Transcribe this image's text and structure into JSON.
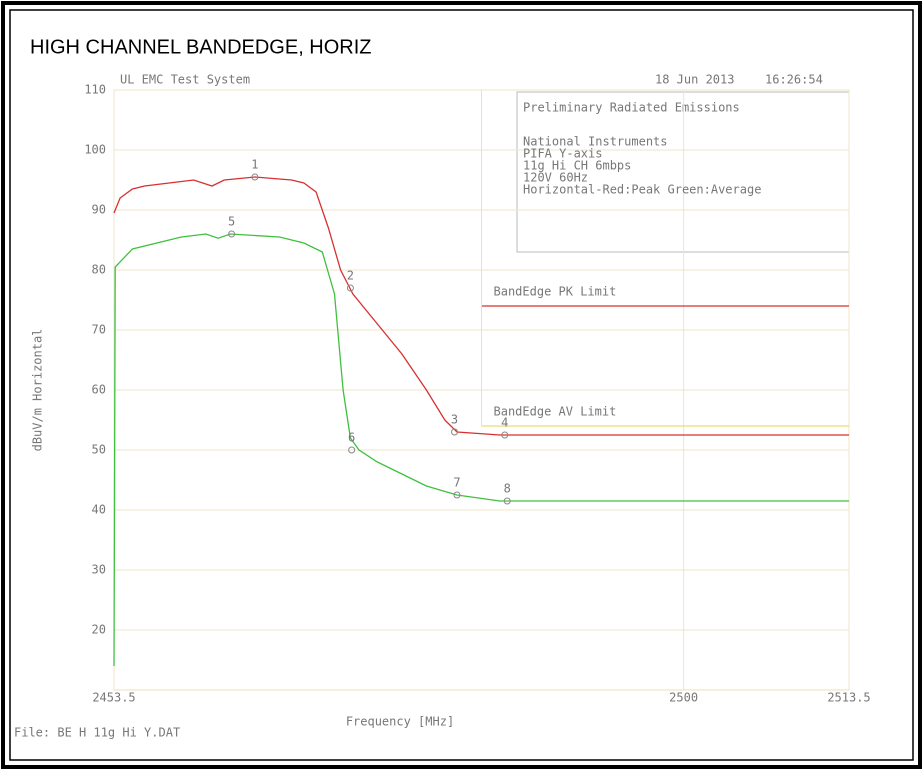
{
  "chart_data": {
    "type": "line",
    "title": "HIGH CHANNEL BANDEDGE, HORIZ",
    "system": "UL EMC Test System",
    "date": "18 Jun 2013",
    "time": "16:26:54",
    "box_title": "Preliminary Radiated Emissions",
    "box_lines": [
      "National Instruments",
      "PIFA Y-axis",
      "11g Hi CH 6mbps",
      "120V 60Hz",
      "Horizontal-Red:Peak Green:Average"
    ],
    "xlabel": "Frequency [MHz]",
    "ylabel": "dBuV/m Horizontal",
    "file": "File: BE H 11g Hi Y.DAT",
    "xlim": [
      2453.5,
      2513.5
    ],
    "xticks": [
      2453.5,
      2500,
      2513.5
    ],
    "ylim": [
      10,
      110
    ],
    "yticks": [
      20,
      30,
      40,
      50,
      60,
      70,
      80,
      90,
      100,
      110
    ],
    "grid": true,
    "series": [
      {
        "name": "Peak",
        "color": "#d83030",
        "x": [
          2453.5,
          2454,
          2455,
          2456,
          2458,
          2460,
          2461.5,
          2462.5,
          2465,
          2468,
          2469,
          2470,
          2471,
          2472,
          2473,
          2475,
          2477,
          2479,
          2480.5,
          2481.5,
          2485,
          2495,
          2505,
          2513.5
        ],
        "values": [
          89.5,
          92,
          93.5,
          94,
          94.5,
          95,
          94,
          95,
          95.5,
          95,
          94.5,
          93,
          87,
          80,
          76,
          71,
          66,
          60,
          55,
          53,
          52.5,
          52.5,
          52.5,
          52.5
        ]
      },
      {
        "name": "Average",
        "color": "#40c040",
        "x": [
          2453.5,
          2453.6,
          2455,
          2459,
          2461,
          2462,
          2463,
          2467,
          2469,
          2470.5,
          2471.5,
          2472.2,
          2472.8,
          2473.5,
          2475,
          2477,
          2479,
          2481.5,
          2485,
          2513.5
        ],
        "values": [
          14,
          80.5,
          83.5,
          85.5,
          86,
          85.3,
          86,
          85.5,
          84.5,
          83,
          76,
          60,
          52,
          50,
          48,
          46,
          44,
          42.5,
          41.5,
          41.5
        ]
      }
    ],
    "limits": [
      {
        "name": "BandEdge PK Limit",
        "color": "#d83030",
        "x": [
          2483.5,
          2513.5
        ],
        "values": [
          74,
          74
        ]
      },
      {
        "name": "BandEdge AV Limit",
        "color": "#e8e070",
        "x": [
          2483.5,
          2513.5
        ],
        "values": [
          54,
          54
        ]
      }
    ],
    "markers": [
      {
        "label": "1",
        "x": 2465.0,
        "y": 95.5
      },
      {
        "label": "2",
        "x": 2472.8,
        "y": 77
      },
      {
        "label": "3",
        "x": 2481.3,
        "y": 53
      },
      {
        "label": "4",
        "x": 2485.4,
        "y": 52.5
      },
      {
        "label": "5",
        "x": 2463.1,
        "y": 86
      },
      {
        "label": "6",
        "x": 2472.9,
        "y": 50
      },
      {
        "label": "7",
        "x": 2481.5,
        "y": 42.5
      },
      {
        "label": "8",
        "x": 2485.6,
        "y": 41.5
      }
    ]
  }
}
